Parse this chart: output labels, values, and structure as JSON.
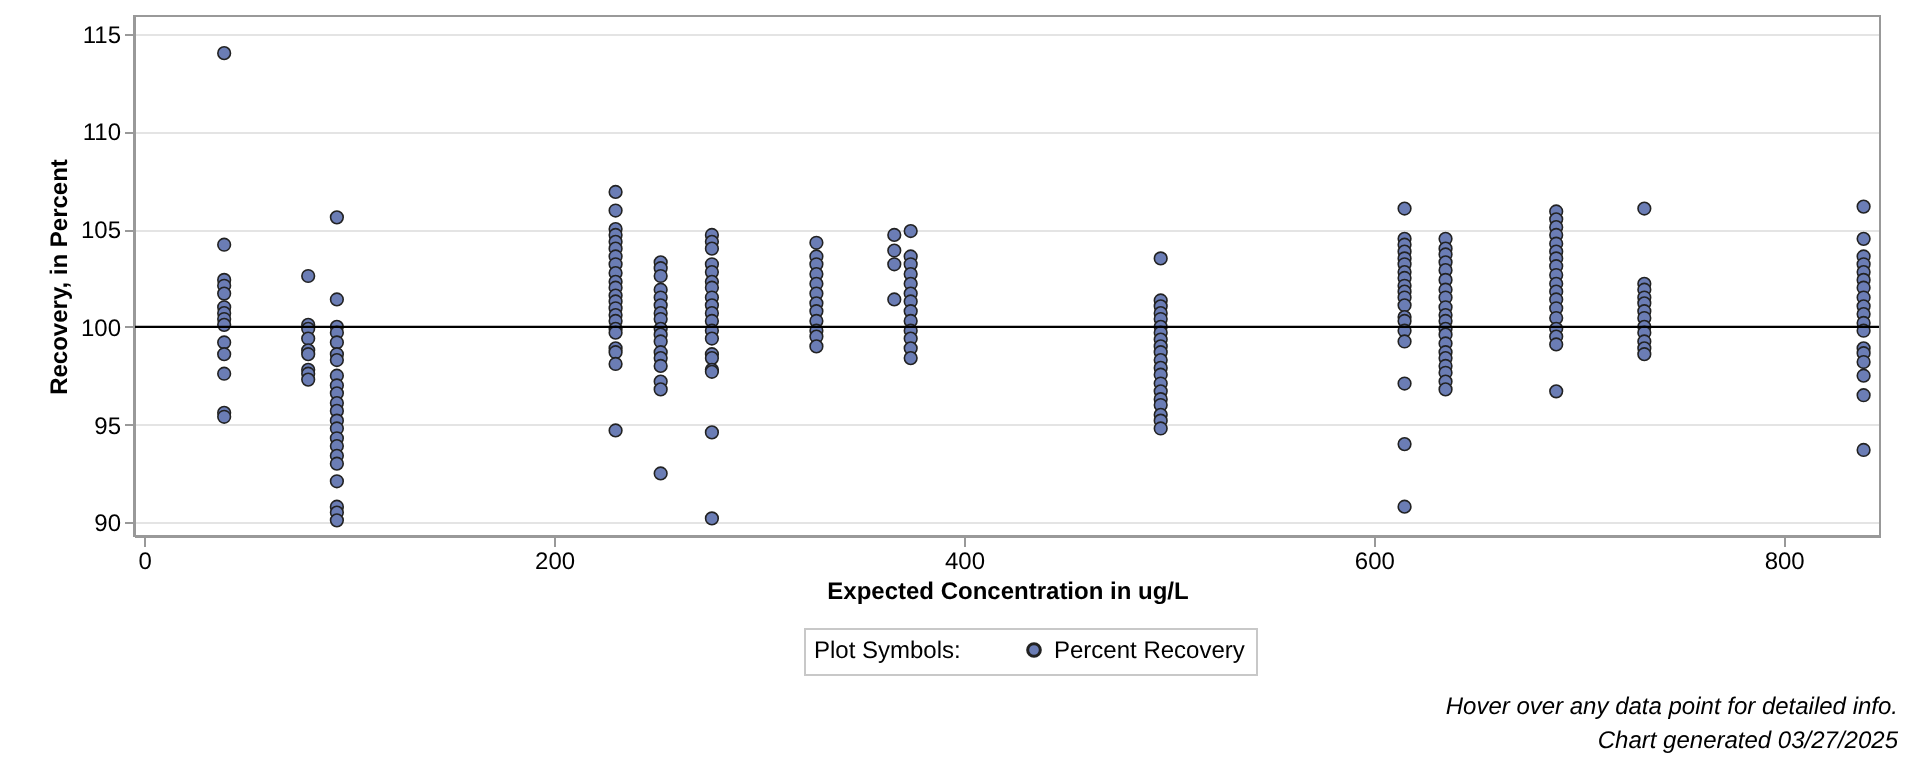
{
  "chart_data": {
    "type": "scatter",
    "xlabel": "Expected Concentration in ug/L",
    "ylabel": "Recovery, in Percent",
    "legend_title": "Plot Symbols:",
    "xlim": [
      -5,
      847
    ],
    "ylim": [
      89.3,
      115.9
    ],
    "xticks": [
      0,
      200,
      400,
      600,
      800
    ],
    "yticks": [
      90,
      95,
      100,
      105,
      110,
      115
    ],
    "grid": "y",
    "legend": "bottom",
    "marker": "circle",
    "ref_lines": [
      {
        "axis": "y",
        "value": 100,
        "color": "#000000"
      }
    ],
    "annotations": [
      "Hover over any data point for detailed info.",
      "Chart generated 03/27/2025"
    ],
    "series": [
      {
        "name": "Percent Recovery",
        "color": "#6b7db5",
        "x": [
          39,
          39,
          39,
          39,
          39,
          39,
          39,
          39,
          39,
          39,
          39,
          39,
          39,
          39,
          80,
          80,
          80,
          80,
          80,
          80,
          80,
          80,
          80,
          94,
          94,
          94,
          94,
          94,
          94,
          94,
          94,
          94,
          94,
          94,
          94,
          94,
          94,
          94,
          94,
          94,
          94,
          94,
          94,
          94,
          94,
          230,
          230,
          230,
          230,
          230,
          230,
          230,
          230,
          230,
          230,
          230,
          230,
          230,
          230,
          230,
          230,
          230,
          230,
          230,
          230,
          230,
          230,
          252,
          252,
          252,
          252,
          252,
          252,
          252,
          252,
          252,
          252,
          252,
          252,
          252,
          252,
          252,
          252,
          252,
          277,
          277,
          277,
          277,
          277,
          277,
          277,
          277,
          277,
          277,
          277,
          277,
          277,
          277,
          277,
          277,
          277,
          277,
          277,
          328,
          328,
          328,
          328,
          328,
          328,
          328,
          328,
          328,
          328,
          328,
          328,
          366,
          366,
          366,
          366,
          374,
          374,
          374,
          374,
          374,
          374,
          374,
          374,
          374,
          374,
          374,
          374,
          374,
          496,
          496,
          496,
          496,
          496,
          496,
          496,
          496,
          496,
          496,
          496,
          496,
          496,
          496,
          496,
          496,
          496,
          496,
          496,
          496,
          615,
          615,
          615,
          615,
          615,
          615,
          615,
          615,
          615,
          615,
          615,
          615,
          615,
          615,
          615,
          615,
          615,
          615,
          615,
          635,
          635,
          635,
          635,
          635,
          635,
          635,
          635,
          635,
          635,
          635,
          635,
          635,
          635,
          635,
          635,
          635,
          635,
          635,
          635,
          689,
          689,
          689,
          689,
          689,
          689,
          689,
          689,
          689,
          689,
          689,
          689,
          689,
          689,
          689,
          689,
          689,
          689,
          732,
          732,
          732,
          732,
          732,
          732,
          732,
          732,
          732,
          732,
          732,
          732,
          839,
          839,
          839,
          839,
          839,
          839,
          839,
          839,
          839,
          839,
          839,
          839,
          839,
          839,
          839,
          839,
          839,
          839
        ],
        "values": [
          114,
          104.2,
          102.4,
          102.1,
          101.7,
          101,
          100.7,
          100.4,
          100.1,
          99.2,
          98.6,
          97.6,
          95.6,
          95.4,
          102.6,
          100.1,
          99.9,
          99.4,
          98.8,
          98.6,
          97.8,
          97.6,
          97.3,
          105.6,
          101.4,
          100,
          99.7,
          99.2,
          98.6,
          98.3,
          97.5,
          97,
          96.6,
          96.1,
          95.7,
          95.2,
          94.8,
          94.3,
          93.9,
          93.4,
          93,
          92.1,
          90.8,
          90.5,
          90.1,
          106.9,
          105.95,
          105,
          104.7,
          104.35,
          104,
          103.6,
          103.2,
          102.75,
          102.3,
          102,
          101.6,
          101.3,
          100.95,
          100.6,
          100.3,
          99.9,
          99.7,
          98.9,
          98.7,
          98.1,
          94.7,
          103.3,
          103,
          102.6,
          101.9,
          101.5,
          101.1,
          100.7,
          100.4,
          99.9,
          99.6,
          99.25,
          98.7,
          98.4,
          98,
          97.2,
          96.8,
          92.5,
          104.7,
          104.35,
          104,
          103.2,
          102.8,
          102.3,
          102,
          101.5,
          101.1,
          100.7,
          100.3,
          99.8,
          99.4,
          98.6,
          98.4,
          97.8,
          97.7,
          94.6,
          90.2,
          104.3,
          103.6,
          103.2,
          102.7,
          102.2,
          101.7,
          101.2,
          100.8,
          100.3,
          99.8,
          99.5,
          99,
          104.7,
          103.9,
          103.2,
          101.4,
          104.9,
          103.6,
          103.2,
          102.7,
          102.2,
          101.7,
          101.3,
          100.8,
          100.3,
          99.8,
          99.4,
          98.9,
          98.4,
          103.5,
          101.35,
          101.05,
          100.7,
          100.4,
          100,
          99.7,
          99.35,
          99,
          98.7,
          98.3,
          97.9,
          97.55,
          97.1,
          96.7,
          96.3,
          96,
          95.5,
          95.2,
          94.8,
          106.05,
          104.5,
          104.2,
          103.85,
          103.5,
          103.2,
          102.8,
          102.5,
          102.1,
          101.8,
          101.5,
          101.1,
          100.5,
          100.3,
          99.8,
          99.25,
          97.1,
          94,
          90.8,
          104.5,
          104,
          103.7,
          103.3,
          102.9,
          102.4,
          101.9,
          101.5,
          101,
          100.6,
          100.3,
          99.9,
          99.6,
          99.15,
          98.7,
          98.4,
          98,
          97.65,
          97.2,
          96.8,
          105.9,
          105.5,
          105.1,
          104.7,
          104.25,
          103.85,
          103.5,
          103.1,
          102.65,
          102.2,
          101.8,
          101.4,
          100.95,
          100.45,
          99.9,
          99.5,
          99.1,
          96.7,
          106.05,
          102.2,
          101.9,
          101.5,
          101.2,
          100.8,
          100.45,
          100,
          99.7,
          99.25,
          98.9,
          98.6,
          106.15,
          104.5,
          103.6,
          103.2,
          102.8,
          102.4,
          102,
          101.5,
          101.05,
          100.65,
          100.2,
          99.8,
          98.9,
          98.65,
          98.2,
          97.5,
          96.5,
          93.7
        ]
      }
    ]
  }
}
